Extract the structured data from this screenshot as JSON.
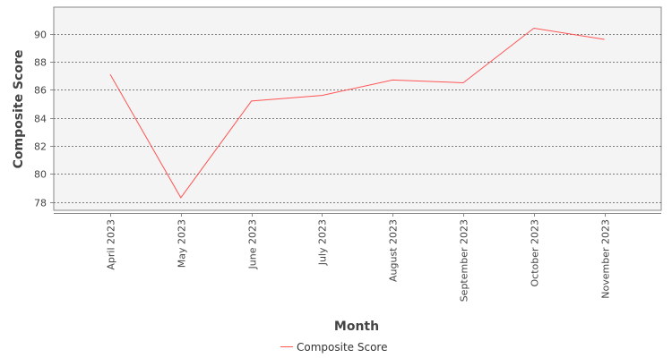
{
  "chart_data": {
    "type": "line",
    "categories": [
      "April 2023",
      "May 2023",
      "June 2023",
      "July 2023",
      "August 2023",
      "September 2023",
      "October 2023",
      "November 2023"
    ],
    "series": [
      {
        "name": "Composite Score",
        "values": [
          87.1,
          78.3,
          85.2,
          85.6,
          86.7,
          86.5,
          90.4,
          89.6
        ],
        "color": "#ff5555"
      }
    ],
    "title": "",
    "xlabel": "Month",
    "ylabel": "Composite Score",
    "ylim": [
      77.4,
      91.9
    ],
    "yticks": [
      "78",
      "80",
      "82",
      "84",
      "86",
      "88",
      "90"
    ],
    "grid": true,
    "legend": "bottom-center",
    "plot_background": "#f4f4f4",
    "gridline_color": "#555555"
  }
}
